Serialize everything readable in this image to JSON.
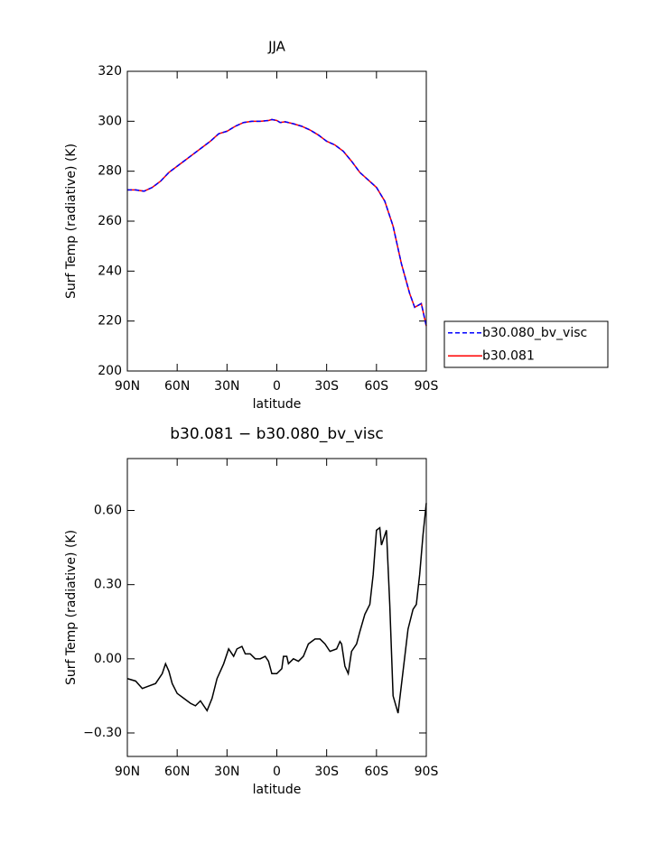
{
  "chart_data": [
    {
      "type": "line",
      "title": "JJA",
      "y_label": "Surf Temp (radiative) (K)",
      "x_label": "latitude",
      "x": [
        90,
        85,
        80,
        75,
        70,
        65,
        60,
        55,
        50,
        45,
        40,
        35,
        30,
        25,
        20,
        15,
        10,
        5,
        3,
        0,
        -2,
        -5,
        -10,
        -15,
        -20,
        -25,
        -30,
        -35,
        -40,
        -45,
        -50,
        -55,
        -60,
        -65,
        -70,
        -75,
        -80,
        -83,
        -87,
        -90
      ],
      "series": [
        {
          "name": "b30.080_bv_visc",
          "color": "#0000ff",
          "linestyle": "dashed",
          "values": [
            272.5,
            272.5,
            272,
            273.5,
            276,
            279.5,
            282,
            284.5,
            287,
            289.5,
            292,
            295,
            296,
            298,
            299.5,
            300,
            300,
            300.3,
            300.7,
            300.3,
            299.5,
            299.8,
            299,
            298,
            296.5,
            294.5,
            292,
            290.5,
            288,
            284,
            279.5,
            276.5,
            273.5,
            268,
            258,
            243,
            231,
            225.5,
            227,
            218
          ]
        },
        {
          "name": "b30.081",
          "color": "#ff0000",
          "linestyle": "solid",
          "values": [
            272.5,
            272.5,
            272,
            273.5,
            276,
            279.5,
            282,
            284.5,
            287,
            289.5,
            292,
            295,
            296,
            298,
            299.5,
            300,
            300,
            300.3,
            300.7,
            300.3,
            299.5,
            299.8,
            299,
            298,
            296.5,
            294.5,
            292,
            290.5,
            288,
            284,
            279.5,
            276.5,
            273.5,
            268,
            258,
            243,
            231,
            225.5,
            227,
            218
          ]
        }
      ],
      "xlim": [
        90,
        -90
      ],
      "xticks": [
        {
          "value": 90,
          "label": "90N"
        },
        {
          "value": 60,
          "label": "60N"
        },
        {
          "value": 30,
          "label": "30N"
        },
        0,
        {
          "value": -30,
          "label": "30S"
        },
        {
          "value": -60,
          "label": "60S"
        },
        {
          "value": -90,
          "label": "90S"
        }
      ],
      "ylim": [
        200,
        320
      ],
      "yticks": [
        200,
        220,
        240,
        260,
        280,
        300,
        320
      ],
      "legend": "right"
    },
    {
      "type": "line",
      "title": "b30.081 − b30.080_bv_visc",
      "y_label": "Surf Temp (radiative) (K)",
      "x_label": "latitude",
      "x": [
        90,
        85,
        81,
        77,
        73,
        69,
        67,
        65,
        63,
        60,
        56,
        52,
        49,
        46,
        42,
        39,
        36,
        32,
        29,
        26,
        24,
        21,
        19,
        16,
        13,
        10,
        7,
        5,
        3,
        0,
        -3,
        -4,
        -6,
        -7,
        -10,
        -13,
        -16,
        -19,
        -23,
        -26,
        -29,
        -32,
        -36,
        -38,
        -39,
        -41,
        -43,
        -45,
        -48,
        -50,
        -53,
        -56,
        -58,
        -60,
        -62,
        -63,
        -66,
        -68,
        -70,
        -73,
        -76,
        -79,
        -82,
        -84,
        -86,
        -88,
        -90
      ],
      "color": "#000000",
      "values": [
        -0.08,
        -0.09,
        -0.12,
        -0.11,
        -0.1,
        -0.06,
        -0.02,
        -0.05,
        -0.1,
        -0.14,
        -0.16,
        -0.18,
        -0.19,
        -0.17,
        -0.21,
        -0.16,
        -0.08,
        -0.02,
        0.04,
        0.01,
        0.04,
        0.05,
        0.02,
        0.02,
        0.0,
        0.0,
        0.01,
        -0.01,
        -0.06,
        -0.06,
        -0.04,
        0.01,
        0.01,
        -0.02,
        0.0,
        -0.01,
        0.01,
        0.06,
        0.08,
        0.08,
        0.06,
        0.03,
        0.04,
        0.07,
        0.06,
        -0.03,
        -0.06,
        0.03,
        0.06,
        0.11,
        0.18,
        0.22,
        0.34,
        0.52,
        0.53,
        0.46,
        0.52,
        0.22,
        -0.15,
        -0.22,
        -0.05,
        0.12,
        0.2,
        0.22,
        0.34,
        0.5,
        0.63
      ],
      "xlim": [
        90,
        -90
      ],
      "xticks": [
        {
          "value": 90,
          "label": "90N"
        },
        {
          "value": 60,
          "label": "60N"
        },
        {
          "value": 30,
          "label": "30N"
        },
        0,
        {
          "value": -30,
          "label": "30S"
        },
        {
          "value": -60,
          "label": "60S"
        },
        {
          "value": -90,
          "label": "90S"
        }
      ],
      "ylim": [
        -0.395,
        0.81
      ],
      "yticks": [
        {
          "value": -0.3,
          "label": "−0.30"
        },
        {
          "value": 0,
          "label": "0.00"
        },
        {
          "value": 0.3,
          "label": "0.30"
        },
        {
          "value": 0.6,
          "label": "0.60"
        }
      ]
    }
  ]
}
